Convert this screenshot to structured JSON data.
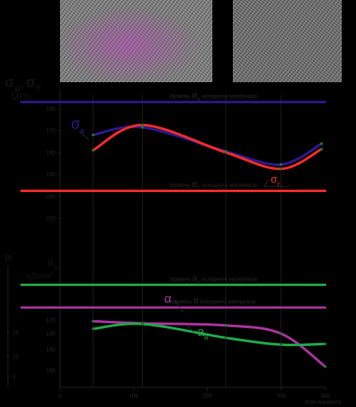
{
  "images": {
    "left": "micrograph-with-magenta-highlight",
    "right": "micrograph-grayscale"
  },
  "chart_data": [
    {
      "type": "line",
      "title": "",
      "ylabel_line1": "σ",
      "ylabel_line1b": "в",
      "ylabel_sep": ", ",
      "ylabel_line1c": "σ",
      "ylabel_line1d": "Т",
      "ylabel_unit": "МПа",
      "ylim": [
        100,
        224
      ],
      "xlim": [
        0,
        360
      ],
      "y_ticks": [
        110,
        130,
        150,
        170,
        190,
        210
      ],
      "y_tick_labels": [
        "210",
        "200",
        "190",
        "180",
        "170",
        "160"
      ],
      "series": [
        {
          "name": "σв",
          "label_main": "σ",
          "label_sub": "в",
          "color": "#2b1a8c",
          "x": [
            45,
            112,
            225,
            300,
            355
          ],
          "y": [
            186,
            193,
            171,
            159,
            178
          ]
        },
        {
          "name": "σт",
          "label_main": "σ",
          "label_sub": "т",
          "color": "#ff2a2a",
          "x": [
            45,
            112,
            225,
            300,
            355
          ],
          "y": [
            172,
            195,
            170,
            155,
            173
          ]
        }
      ],
      "levels": [
        {
          "y": 216,
          "color": "#2b1a8c",
          "pre": "Уровень ",
          "sym": "σ",
          "sub": "в",
          "post": " исходного материала"
        },
        {
          "y": 135,
          "color": "#ff2a2a",
          "pre": "Уровень ",
          "sym": "σ",
          "sub": "Т",
          "post": " исходного материала"
        }
      ]
    },
    {
      "type": "line",
      "ylabel_top": "α",
      "ylabel_top_sup": "°",
      "ylabel_mid": "a",
      "ylabel_mid_sub": "н",
      "ylabel_unit": "кДж/м²",
      "ylim": [
        0,
        200
      ],
      "xlim": [
        0,
        360
      ],
      "x_ticks": [
        0,
        100,
        200,
        300,
        360
      ],
      "x_tick_labels": [
        "0",
        "100",
        "200",
        "300",
        "360"
      ],
      "x_unit": "Угол поворота",
      "y_ticks": [
        25,
        55,
        78,
        98
      ],
      "y_tick_labels": [
        "150",
        "140",
        "130",
        "120"
      ],
      "y_left_ticks": [
        15,
        45,
        80
      ],
      "y_left_tick_labels": [
        "5",
        "10",
        "15"
      ],
      "series": [
        {
          "name": "α",
          "label_main": "α",
          "color": "#a8329c",
          "x": [
            45,
            112,
            225,
            300,
            360
          ],
          "y": [
            96,
            93,
            90,
            78,
            30
          ]
        },
        {
          "name": "aн",
          "label_main": "a",
          "label_sub": "н",
          "color": "#1fa84a",
          "x": [
            45,
            112,
            225,
            300,
            360
          ],
          "y": [
            85,
            92,
            72,
            62,
            63
          ]
        }
      ],
      "levels": [
        {
          "y": 149,
          "color": "#1fa84a",
          "pre": "Уровень ",
          "sym": "a",
          "sub": "н",
          "post": " исходного материала"
        },
        {
          "y": 116,
          "color": "#a8329c",
          "pre": "Уровень ",
          "sym": "α",
          "sub": "",
          "post": " исходного материала"
        }
      ]
    }
  ]
}
